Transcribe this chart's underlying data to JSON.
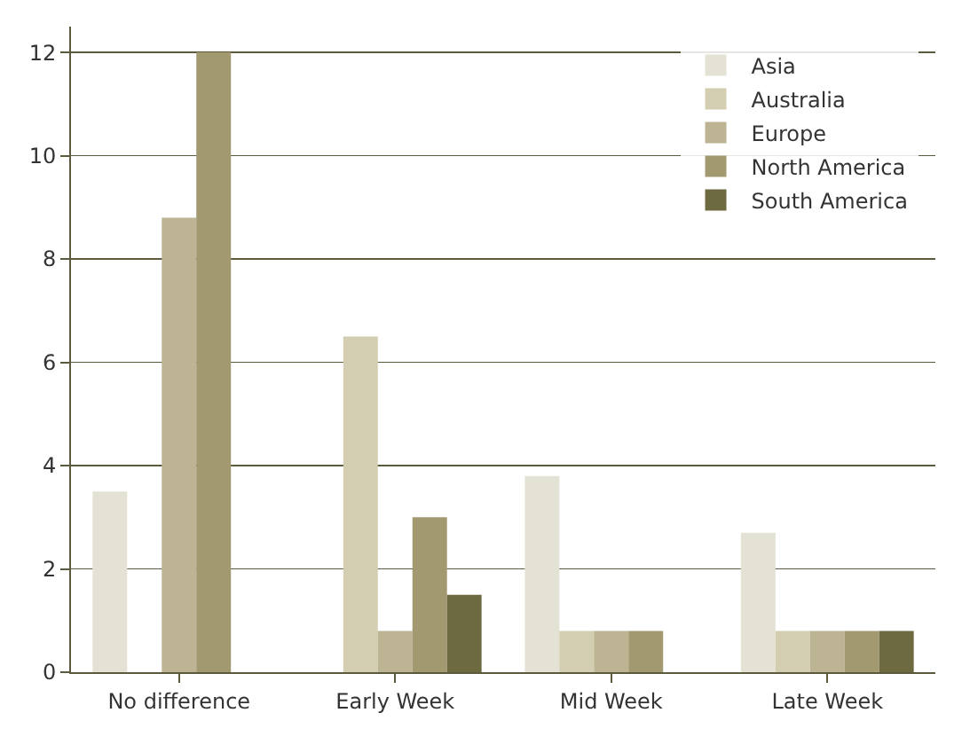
{
  "chart_data": {
    "type": "bar",
    "categories": [
      "No difference",
      "Early Week",
      "Mid Week",
      "Late Week"
    ],
    "series": [
      {
        "name": "Asia",
        "color": "#e4e2d4",
        "values": [
          3.5,
          0,
          3.8,
          2.7
        ]
      },
      {
        "name": "Australia",
        "color": "#d3ceb2",
        "values": [
          0,
          6.5,
          0.8,
          0.8
        ]
      },
      {
        "name": "Europe",
        "color": "#bcb492",
        "values": [
          8.8,
          0.8,
          0.8,
          0.8
        ]
      },
      {
        "name": "North America",
        "color": "#a29970",
        "values": [
          12,
          3,
          0.8,
          0.8
        ]
      },
      {
        "name": "South America",
        "color": "#6d6940",
        "values": [
          0,
          1.5,
          0,
          0.8
        ]
      }
    ],
    "ylim": [
      0,
      12.5
    ],
    "yticks": [
      0,
      2,
      4,
      6,
      8,
      10,
      12
    ],
    "grid": "y",
    "legend": "top right"
  }
}
